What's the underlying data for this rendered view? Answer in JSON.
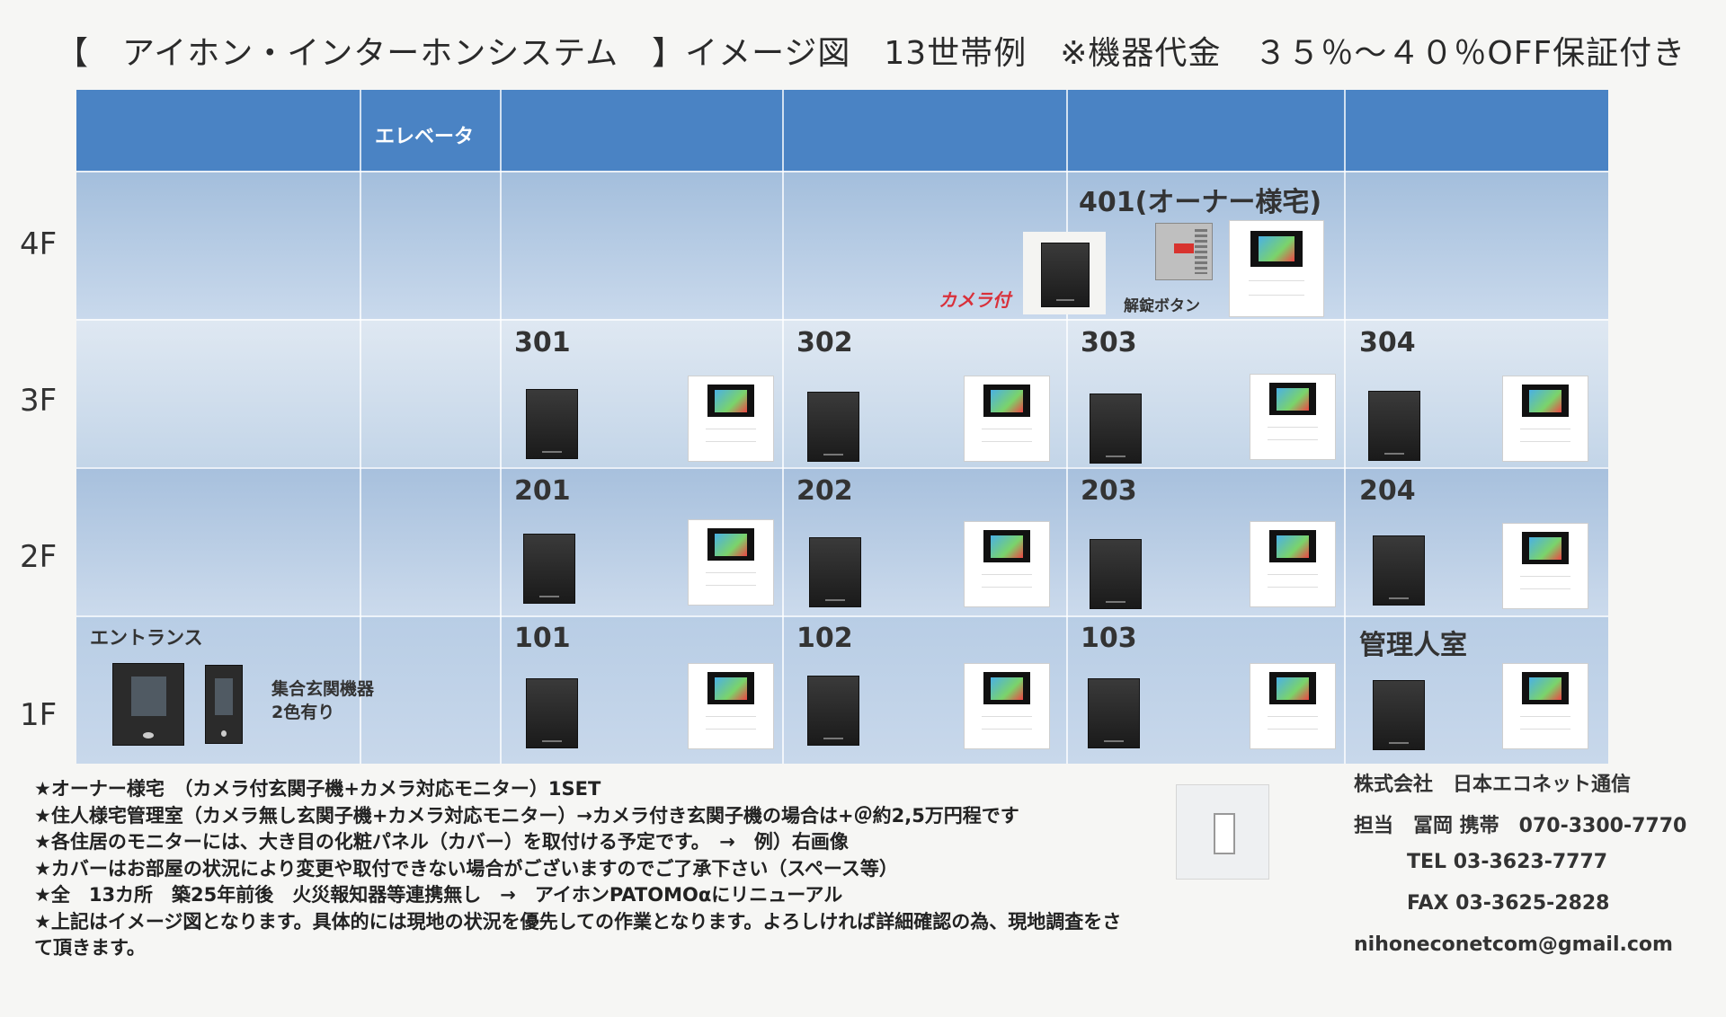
{
  "title": "【　アイホン・インターホンシステム　】イメージ図　13世帯例　※機器代金　３５％～４０％OFF保証付き",
  "header": {
    "elevator": "エレベータ"
  },
  "floors": [
    "4F",
    "3F",
    "2F",
    "1F"
  ],
  "units": {
    "u401": "401(オーナー様宅)",
    "u301": "301",
    "u302": "302",
    "u303": "303",
    "u304": "304",
    "u201": "201",
    "u202": "202",
    "u203": "203",
    "u204": "204",
    "u101": "101",
    "u102": "102",
    "u103": "103",
    "manager": "管理人室"
  },
  "labels": {
    "camera": "カメラ付",
    "release_button": "解錠ボタン",
    "entrance": "エントランス",
    "entrance_device_1": "集合玄関機器",
    "entrance_device_2": "2色有り"
  },
  "notes": [
    "★オーナー様宅　（カメラ付玄関子機+カメラ対応モニター）1SET",
    "★住人様宅管理室（カメラ無し玄関子機+カメラ対応モニター）→カメラ付き玄関子機の場合は+＠約2,5万円程です",
    "★各住居のモニターには、大き目の化粧パネル（カバー）を取付ける予定です。　→　例）右画像",
    "★カバーはお部屋の状況により変更や取付できない場合がございますのでご了承下さい（スペース等）",
    "★全　13カ所　築25年前後　火災報知器等連携無し　→　アイホンPATOMOαにリニューアル",
    "★上記はイメージ図となります。具体的には現地の状況を優先しての作業となります。よろしければ詳細確認の為、現地調査をさ",
    "て頂きます。"
  ],
  "company": {
    "name": "株式会社　日本エコネット通信",
    "contact": "担当　冨岡 携帯　070-3300-7770",
    "tel": "TEL 03-3623-7777",
    "fax": "FAX 03-3625-2828",
    "email": "nihoneconetcom@gmail.com"
  },
  "colors": {
    "header_band": "#4a83c4",
    "row_a": "#a9c2de",
    "row_b": "#c6d7ea",
    "camera_label": "#d9303a"
  }
}
